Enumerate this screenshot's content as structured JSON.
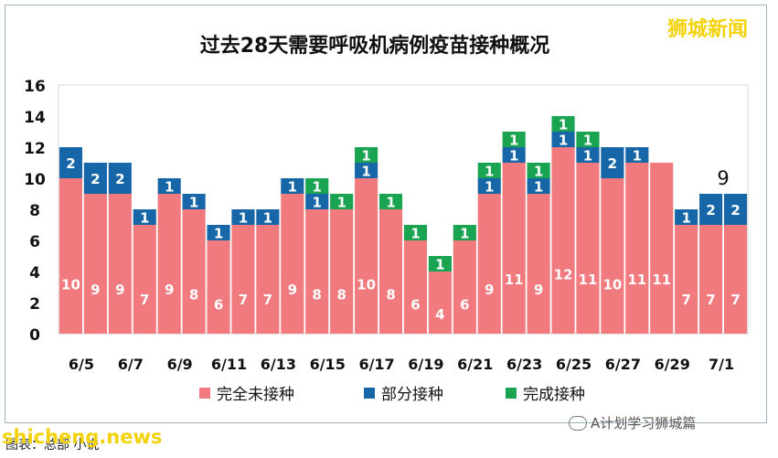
{
  "brand": "狮城新闻",
  "footer": {
    "source": "图表：总部 小说",
    "url": "shicheng.news",
    "wechat": "A计划学习狮城篇"
  },
  "colors": {
    "unvaccinated": "#f07a7d",
    "partial": "#1767a8",
    "full": "#1aa351"
  },
  "chart_data": {
    "type": "bar",
    "stacked": true,
    "title": "过去28天需要呼吸机病例疫苗接种概况",
    "ylim": [
      0,
      16
    ],
    "yticks": [
      "0",
      "2",
      "4",
      "6",
      "8",
      "10",
      "12",
      "14",
      "16"
    ],
    "categories": [
      "6/5",
      "6/6",
      "6/7",
      "6/8",
      "6/9",
      "6/10",
      "6/11",
      "6/12",
      "6/13",
      "6/14",
      "6/15",
      "6/16",
      "6/17",
      "6/18",
      "6/19",
      "6/20",
      "6/21",
      "6/22",
      "6/23",
      "6/24",
      "6/25",
      "6/26",
      "6/27",
      "6/28",
      "6/29",
      "6/30",
      "7/1",
      "7/2"
    ],
    "xtick_labels": [
      "6/5",
      "",
      "6/7",
      "",
      "6/9",
      "",
      "6/11",
      "",
      "6/13",
      "",
      "6/15",
      "",
      "6/17",
      "",
      "6/19",
      "",
      "6/21",
      "",
      "6/23",
      "",
      "6/25",
      "",
      "6/27",
      "",
      "6/29",
      "",
      "7/1",
      ""
    ],
    "series": [
      {
        "name": "完全未接种",
        "color_key": "unvaccinated",
        "values": [
          10,
          9,
          9,
          7,
          9,
          8,
          6,
          7,
          7,
          9,
          8,
          8,
          10,
          8,
          6,
          4,
          6,
          9,
          11,
          9,
          12,
          11,
          10,
          11,
          11,
          7,
          7,
          7
        ]
      },
      {
        "name": "部分接种",
        "color_key": "partial",
        "values": [
          2,
          2,
          2,
          1,
          1,
          1,
          1,
          1,
          1,
          1,
          1,
          0,
          1,
          0,
          0,
          0,
          0,
          1,
          1,
          1,
          1,
          1,
          2,
          1,
          0,
          1,
          2,
          2
        ]
      },
      {
        "name": "完成接种",
        "color_key": "full",
        "values": [
          0,
          0,
          0,
          0,
          0,
          0,
          0,
          0,
          0,
          0,
          1,
          1,
          1,
          1,
          1,
          1,
          1,
          1,
          1,
          1,
          1,
          1,
          0,
          0,
          0,
          0,
          0,
          0
        ]
      }
    ],
    "annotations": [
      {
        "category": "7/1",
        "text": "9"
      }
    ],
    "legend": [
      "完全未接种",
      "部分接种",
      "完成接种"
    ],
    "legend_position": "bottom"
  }
}
